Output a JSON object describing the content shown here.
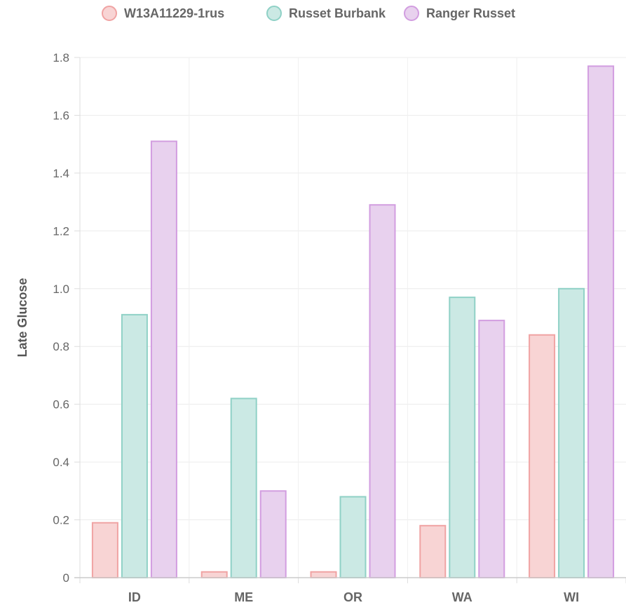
{
  "chart_data": {
    "type": "bar",
    "categories": [
      "ID",
      "ME",
      "OR",
      "WA",
      "WI"
    ],
    "series": [
      {
        "name": "W13A11229-1rus",
        "values": [
          0.19,
          0.02,
          0.02,
          0.18,
          0.84
        ],
        "fill": "#f8d4d4",
        "stroke": "#f0a3a3"
      },
      {
        "name": "Russet Burbank",
        "values": [
          0.91,
          0.62,
          0.28,
          0.97,
          1.0
        ],
        "fill": "#cbe9e4",
        "stroke": "#8fd1c6"
      },
      {
        "name": "Ranger Russet",
        "values": [
          1.51,
          0.3,
          1.29,
          0.89,
          1.77
        ],
        "fill": "#e8d1ee",
        "stroke": "#d29de0"
      }
    ],
    "ylabel": "Late Glucose",
    "xlabel": "",
    "ylim": [
      0,
      1.8
    ],
    "yticks": [
      "0",
      "0.2",
      "0.4",
      "0.6",
      "0.8",
      "1.0",
      "1.2",
      "1.4",
      "1.6",
      "1.8"
    ],
    "grid": true,
    "legend_position": "top"
  }
}
